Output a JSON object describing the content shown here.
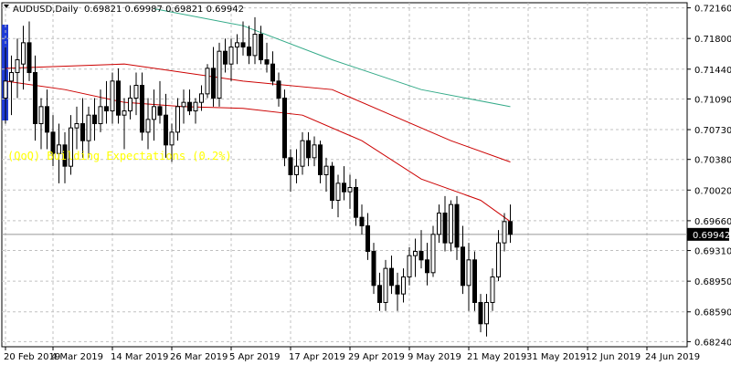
{
  "header": {
    "title": "AUDUSD,Daily",
    "ohlc": "0.69821 0.69987 0.69821 0.69942"
  },
  "overlay_text": "(QoQ) Building Expectations (0.2%)",
  "last_price_label": "0.69942",
  "colors": {
    "bull_body": "#ffffff",
    "bear_body": "#000000",
    "grid": "#c0c0c0",
    "ma_fast": "#cc0000",
    "ma_mid": "#cc0000",
    "ma_slow": "#33aa88",
    "overlay_text": "#ffff00",
    "price_tag_bg": "#000000",
    "sidebar_marker": "#1f3bd6"
  },
  "chart_data": {
    "type": "candlestick",
    "symbol": "AUDUSD",
    "timeframe": "Daily",
    "y_axis_ticks": [
      "0.72160",
      "0.71800",
      "0.71440",
      "0.71090",
      "0.70730",
      "0.70380",
      "0.70020",
      "0.69660",
      "0.69310",
      "0.68950",
      "0.68590",
      "0.68240"
    ],
    "ylim": [
      0.6818,
      0.7222
    ],
    "x_axis_ticks": [
      "20 Feb 2019",
      "4 Mar 2019",
      "14 Mar 2019",
      "26 Mar 2019",
      "5 Apr 2019",
      "17 Apr 2019",
      "29 Apr 2019",
      "9 May 2019",
      "21 May 2019",
      "31 May 2019",
      "12 Jun 2019",
      "24 Jun 2019"
    ],
    "x_tick_bar_index": [
      0,
      8,
      18,
      28,
      38,
      48,
      58,
      68,
      78,
      88,
      98,
      108
    ],
    "candles": [
      [
        0.711,
        0.717,
        0.708,
        0.713
      ],
      [
        0.713,
        0.716,
        0.709,
        0.714
      ],
      [
        0.714,
        0.718,
        0.711,
        0.7155
      ],
      [
        0.715,
        0.7195,
        0.712,
        0.7175
      ],
      [
        0.7175,
        0.72,
        0.713,
        0.714
      ],
      [
        0.714,
        0.716,
        0.706,
        0.708
      ],
      [
        0.708,
        0.711,
        0.705,
        0.71
      ],
      [
        0.71,
        0.712,
        0.705,
        0.707
      ],
      [
        0.707,
        0.709,
        0.703,
        0.7045
      ],
      [
        0.7045,
        0.708,
        0.701,
        0.7055
      ],
      [
        0.7055,
        0.707,
        0.701,
        0.703
      ],
      [
        0.703,
        0.709,
        0.702,
        0.7075
      ],
      [
        0.7075,
        0.71,
        0.705,
        0.708
      ],
      [
        0.708,
        0.711,
        0.704,
        0.706
      ],
      [
        0.706,
        0.71,
        0.704,
        0.709
      ],
      [
        0.709,
        0.711,
        0.706,
        0.708
      ],
      [
        0.708,
        0.712,
        0.707,
        0.71
      ],
      [
        0.71,
        0.713,
        0.708,
        0.7095
      ],
      [
        0.7095,
        0.714,
        0.708,
        0.713
      ],
      [
        0.713,
        0.7145,
        0.708,
        0.709
      ],
      [
        0.709,
        0.711,
        0.705,
        0.7095
      ],
      [
        0.7095,
        0.7125,
        0.7085,
        0.711
      ],
      [
        0.711,
        0.714,
        0.709,
        0.7125
      ],
      [
        0.7125,
        0.714,
        0.706,
        0.707
      ],
      [
        0.707,
        0.711,
        0.705,
        0.7085
      ],
      [
        0.7085,
        0.712,
        0.706,
        0.71
      ],
      [
        0.71,
        0.713,
        0.708,
        0.709
      ],
      [
        0.709,
        0.7115,
        0.704,
        0.7055
      ],
      [
        0.7055,
        0.708,
        0.7035,
        0.707
      ],
      [
        0.707,
        0.711,
        0.706,
        0.71
      ],
      [
        0.71,
        0.712,
        0.708,
        0.7105
      ],
      [
        0.7105,
        0.712,
        0.709,
        0.7095
      ],
      [
        0.7095,
        0.711,
        0.708,
        0.7105
      ],
      [
        0.7105,
        0.7125,
        0.7095,
        0.7115
      ],
      [
        0.7115,
        0.715,
        0.711,
        0.7145
      ],
      [
        0.7145,
        0.717,
        0.71,
        0.711
      ],
      [
        0.711,
        0.7175,
        0.71,
        0.7165
      ],
      [
        0.7165,
        0.718,
        0.714,
        0.715
      ],
      [
        0.715,
        0.718,
        0.713,
        0.717
      ],
      [
        0.717,
        0.7185,
        0.715,
        0.7175
      ],
      [
        0.7175,
        0.72,
        0.716,
        0.717
      ],
      [
        0.717,
        0.7195,
        0.715,
        0.716
      ],
      [
        0.716,
        0.7205,
        0.715,
        0.7185
      ],
      [
        0.7185,
        0.7195,
        0.715,
        0.7155
      ],
      [
        0.7155,
        0.7175,
        0.714,
        0.715
      ],
      [
        0.715,
        0.7165,
        0.7125,
        0.713
      ],
      [
        0.713,
        0.714,
        0.71,
        0.711
      ],
      [
        0.711,
        0.712,
        0.703,
        0.704
      ],
      [
        0.704,
        0.705,
        0.7,
        0.702
      ],
      [
        0.702,
        0.705,
        0.701,
        0.703
      ],
      [
        0.703,
        0.707,
        0.702,
        0.706
      ],
      [
        0.706,
        0.707,
        0.703,
        0.704
      ],
      [
        0.704,
        0.7065,
        0.703,
        0.7055
      ],
      [
        0.7055,
        0.706,
        0.701,
        0.702
      ],
      [
        0.702,
        0.704,
        0.7,
        0.703
      ],
      [
        0.703,
        0.7035,
        0.698,
        0.699
      ],
      [
        0.699,
        0.702,
        0.697,
        0.701
      ],
      [
        0.701,
        0.703,
        0.699,
        0.7
      ],
      [
        0.7,
        0.702,
        0.698,
        0.7005
      ],
      [
        0.7005,
        0.7015,
        0.696,
        0.697
      ],
      [
        0.697,
        0.6985,
        0.695,
        0.696
      ],
      [
        0.696,
        0.6975,
        0.692,
        0.693
      ],
      [
        0.693,
        0.694,
        0.688,
        0.689
      ],
      [
        0.689,
        0.6905,
        0.686,
        0.687
      ],
      [
        0.687,
        0.692,
        0.686,
        0.691
      ],
      [
        0.691,
        0.6925,
        0.688,
        0.689
      ],
      [
        0.689,
        0.6905,
        0.686,
        0.688
      ],
      [
        0.688,
        0.691,
        0.687,
        0.69
      ],
      [
        0.69,
        0.6935,
        0.689,
        0.6925
      ],
      [
        0.6925,
        0.6945,
        0.69,
        0.693
      ],
      [
        0.693,
        0.6955,
        0.691,
        0.692
      ],
      [
        0.692,
        0.694,
        0.689,
        0.6905
      ],
      [
        0.6905,
        0.696,
        0.69,
        0.695
      ],
      [
        0.695,
        0.6985,
        0.694,
        0.6975
      ],
      [
        0.6975,
        0.6995,
        0.693,
        0.694
      ],
      [
        0.694,
        0.699,
        0.693,
        0.6985
      ],
      [
        0.6985,
        0.6995,
        0.692,
        0.6935
      ],
      [
        0.6935,
        0.696,
        0.688,
        0.689
      ],
      [
        0.689,
        0.694,
        0.686,
        0.692
      ],
      [
        0.692,
        0.693,
        0.686,
        0.687
      ],
      [
        0.687,
        0.688,
        0.6835,
        0.6845
      ],
      [
        0.6845,
        0.688,
        0.683,
        0.687
      ],
      [
        0.687,
        0.691,
        0.686,
        0.69
      ],
      [
        0.69,
        0.6955,
        0.6895,
        0.694
      ],
      [
        0.694,
        0.6975,
        0.693,
        0.6965
      ],
      [
        0.6965,
        0.6985,
        0.694,
        0.695
      ]
    ],
    "ma_lines": [
      {
        "name": "MA fast",
        "color": "#cc0000",
        "points": [
          [
            0,
            0.713
          ],
          [
            10,
            0.712
          ],
          [
            20,
            0.7105
          ],
          [
            30,
            0.71
          ],
          [
            40,
            0.7098
          ],
          [
            50,
            0.709
          ],
          [
            60,
            0.706
          ],
          [
            70,
            0.7015
          ],
          [
            80,
            0.699
          ],
          [
            85,
            0.6965
          ]
        ]
      },
      {
        "name": "MA mid",
        "color": "#cc0000",
        "points": [
          [
            0,
            0.7145
          ],
          [
            20,
            0.715
          ],
          [
            40,
            0.713
          ],
          [
            55,
            0.712
          ],
          [
            65,
            0.709
          ],
          [
            75,
            0.706
          ],
          [
            85,
            0.7035
          ]
        ]
      },
      {
        "name": "MA slow",
        "color": "#33aa88",
        "points": [
          [
            25,
            0.7215
          ],
          [
            40,
            0.7195
          ],
          [
            55,
            0.7155
          ],
          [
            70,
            0.712
          ],
          [
            85,
            0.71
          ]
        ]
      }
    ]
  }
}
